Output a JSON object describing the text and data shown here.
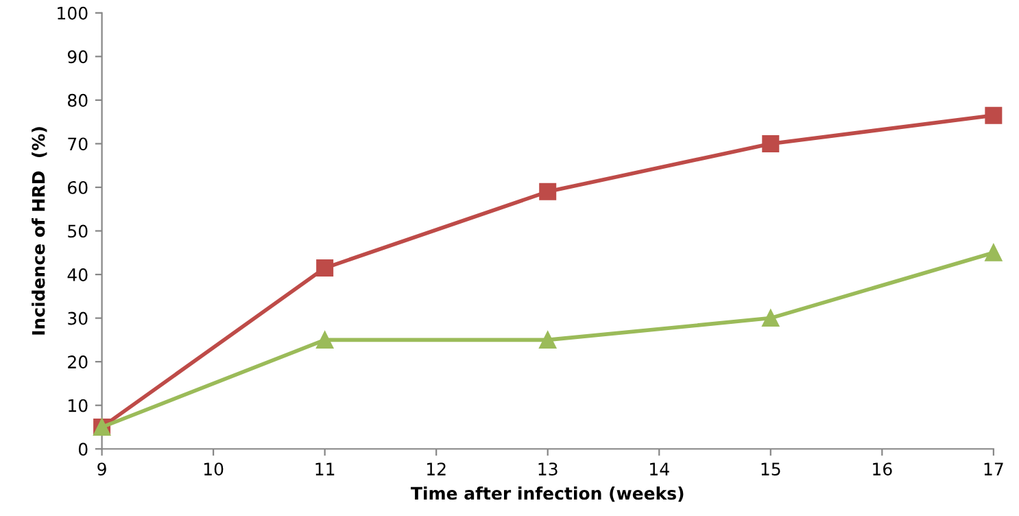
{
  "chart_data": {
    "type": "line",
    "xlabel": "Time after infection (weeks)",
    "ylabel": "Incidence of HRD  (%)",
    "x": [
      9,
      11,
      13,
      15,
      17
    ],
    "series": [
      {
        "color": "#be4b48",
        "values": [
          5,
          41.5,
          59,
          70,
          76.5
        ],
        "marker": "square"
      },
      {
        "color": "#9bbb59",
        "values": [
          5,
          25,
          25,
          30,
          45
        ],
        "marker": "triangle"
      }
    ],
    "xlim": [
      9,
      17
    ],
    "xticks": [
      9,
      10,
      11,
      12,
      13,
      14,
      15,
      16,
      17
    ],
    "ylim": [
      0,
      100
    ],
    "yticks": [
      0,
      10,
      20,
      30,
      40,
      50,
      60,
      70,
      80,
      90,
      100
    ],
    "grid": false,
    "line_style": "solid"
  }
}
